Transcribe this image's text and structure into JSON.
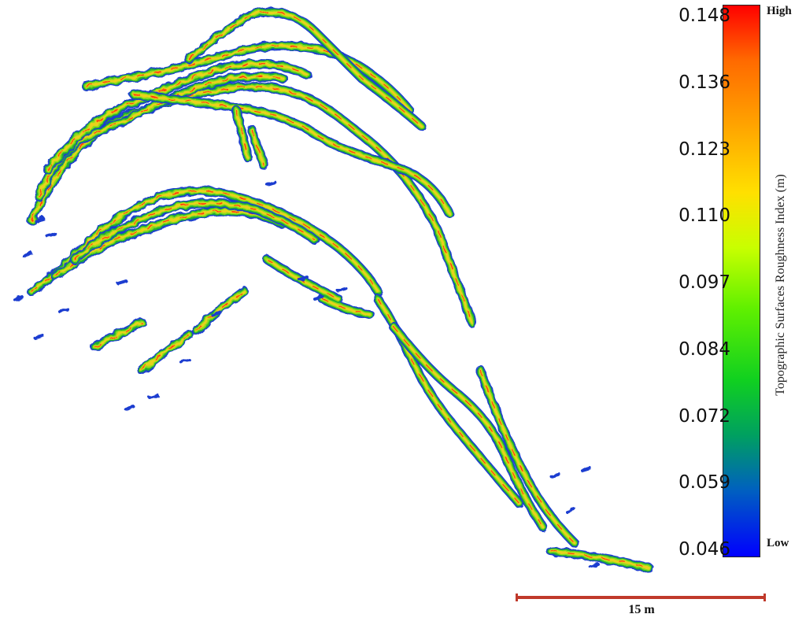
{
  "legend": {
    "title": "Topographic Surfaces Roughness Index (m)",
    "high_label": "High",
    "low_label": "Low",
    "ticks": [
      "0.148",
      "0.136",
      "0.123",
      "0.110",
      "0.097",
      "0.084",
      "0.072",
      "0.059",
      "0.046"
    ]
  },
  "scale_bar": {
    "label": "15 m"
  },
  "colors": {
    "high": "#ff0000",
    "mid": "#ffe000",
    "low": "#0000ff"
  }
}
